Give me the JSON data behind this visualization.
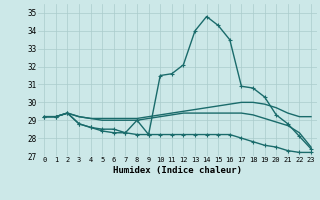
{
  "xlabel": "Humidex (Indice chaleur)",
  "xlim": [
    -0.5,
    23.5
  ],
  "ylim": [
    27,
    35.5
  ],
  "yticks": [
    27,
    28,
    29,
    30,
    31,
    32,
    33,
    34,
    35
  ],
  "xticks": [
    0,
    1,
    2,
    3,
    4,
    5,
    6,
    7,
    8,
    9,
    10,
    11,
    12,
    13,
    14,
    15,
    16,
    17,
    18,
    19,
    20,
    21,
    22,
    23
  ],
  "bg_color": "#cce8e8",
  "grid_color": "#aacccc",
  "line_color": "#1a6b6b",
  "line1_smooth": {
    "x": [
      0,
      1,
      2,
      3,
      4,
      5,
      6,
      7,
      8,
      9,
      10,
      11,
      12,
      13,
      14,
      15,
      16,
      17,
      18,
      19,
      20,
      21,
      22,
      23
    ],
    "y": [
      29.2,
      29.2,
      29.4,
      29.2,
      29.1,
      29.1,
      29.1,
      29.1,
      29.1,
      29.2,
      29.3,
      29.4,
      29.5,
      29.6,
      29.7,
      29.8,
      29.9,
      30.0,
      30.0,
      29.9,
      29.7,
      29.4,
      29.2,
      29.2
    ]
  },
  "line2_smooth": {
    "x": [
      0,
      1,
      2,
      3,
      4,
      5,
      6,
      7,
      8,
      9,
      10,
      11,
      12,
      13,
      14,
      15,
      16,
      17,
      18,
      19,
      20,
      21,
      22,
      23
    ],
    "y": [
      29.2,
      29.2,
      29.4,
      29.2,
      29.1,
      29.0,
      29.0,
      29.0,
      29.0,
      29.1,
      29.2,
      29.3,
      29.4,
      29.4,
      29.4,
      29.4,
      29.4,
      29.4,
      29.3,
      29.1,
      28.9,
      28.7,
      28.3,
      27.5
    ]
  },
  "line3_markers": {
    "x": [
      0,
      1,
      2,
      3,
      4,
      5,
      6,
      7,
      8,
      9,
      10,
      11,
      12,
      13,
      14,
      15,
      16,
      17,
      18,
      19,
      20,
      21,
      22,
      23
    ],
    "y": [
      29.2,
      29.2,
      29.4,
      28.8,
      28.6,
      28.4,
      28.3,
      28.3,
      28.2,
      28.2,
      28.2,
      28.2,
      28.2,
      28.2,
      28.2,
      28.2,
      28.2,
      28.0,
      27.8,
      27.6,
      27.5,
      27.3,
      27.2,
      27.2
    ]
  },
  "line4_markers": {
    "x": [
      0,
      1,
      2,
      3,
      4,
      5,
      6,
      7,
      8,
      9,
      10,
      11,
      12,
      13,
      14,
      15,
      16,
      17,
      18,
      19,
      20,
      21,
      22,
      23
    ],
    "y": [
      29.2,
      29.2,
      29.4,
      28.8,
      28.6,
      28.5,
      28.5,
      28.3,
      29.0,
      28.2,
      31.5,
      31.6,
      32.1,
      34.0,
      34.8,
      34.3,
      33.5,
      30.9,
      30.8,
      30.3,
      29.3,
      28.8,
      28.1,
      27.4
    ]
  }
}
